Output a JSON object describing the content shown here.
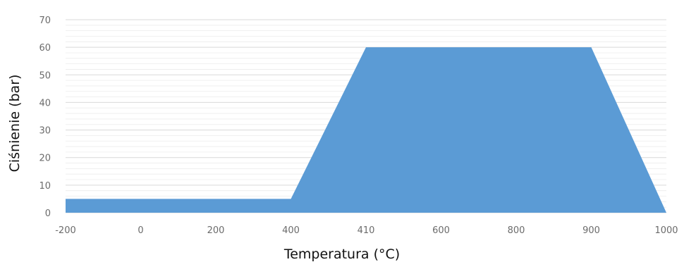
{
  "chart_data": {
    "type": "area",
    "xlabel": "Temperatura (°C)",
    "ylabel": "Ciśnienie (bar)",
    "categories": [
      "-200",
      "0",
      "200",
      "400",
      "410",
      "600",
      "800",
      "900",
      "1000"
    ],
    "yticks": [
      "0",
      "10",
      "20",
      "30",
      "40",
      "50",
      "60",
      "70"
    ],
    "ylim": [
      0,
      70
    ],
    "grid": true,
    "series": [
      {
        "values": [
          5,
          5,
          5,
          5,
          60,
          60,
          60,
          60,
          0
        ]
      }
    ],
    "colors": {
      "area": "#5b9bd5",
      "grid": "#d9d9d9",
      "tick_text": "#6b6b6b"
    }
  }
}
